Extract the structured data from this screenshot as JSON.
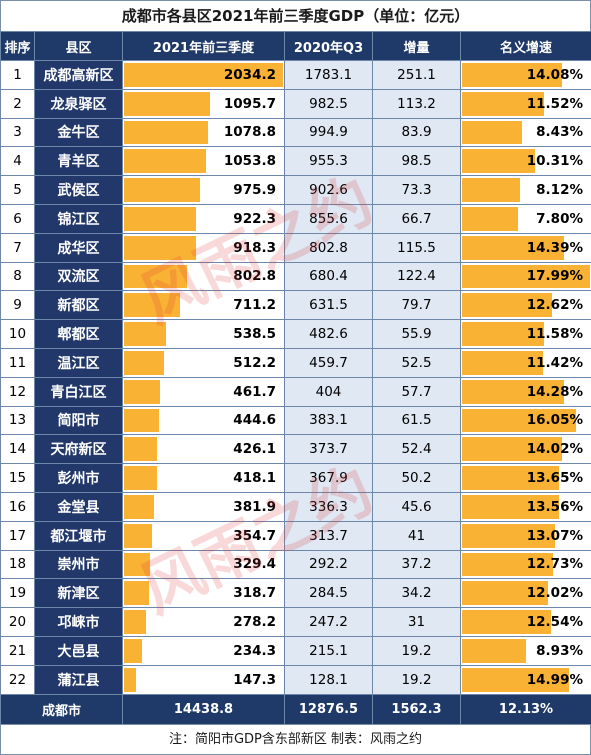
{
  "title": "成都市各县区2021年前三季度GDP（单位：亿元）",
  "headers": {
    "rank": "排序",
    "district": "县区",
    "current": "2021年前三季度",
    "previous": "2020年Q3",
    "increase": "增量",
    "growth": "名义增速"
  },
  "chart_data": {
    "type": "table",
    "title": "成都市各县区2021年前三季度GDP（单位：亿元）",
    "columns": [
      "排序",
      "县区",
      "2021年前三季度",
      "2020年Q3",
      "增量",
      "名义增速"
    ],
    "rows": [
      {
        "rank": "1",
        "district": "成都高新区",
        "current": 2034.2,
        "previous": "1783.1",
        "increase": "251.1",
        "growth": 14.08
      },
      {
        "rank": "2",
        "district": "龙泉驿区",
        "current": 1095.7,
        "previous": "982.5",
        "increase": "113.2",
        "growth": 11.52
      },
      {
        "rank": "3",
        "district": "金牛区",
        "current": 1078.8,
        "previous": "994.9",
        "increase": "83.9",
        "growth": 8.43
      },
      {
        "rank": "4",
        "district": "青羊区",
        "current": 1053.8,
        "previous": "955.3",
        "increase": "98.5",
        "growth": 10.31
      },
      {
        "rank": "5",
        "district": "武侯区",
        "current": 975.9,
        "previous": "902.6",
        "increase": "73.3",
        "growth": 8.12
      },
      {
        "rank": "6",
        "district": "锦江区",
        "current": 922.3,
        "previous": "855.6",
        "increase": "66.7",
        "growth": 7.8
      },
      {
        "rank": "7",
        "district": "成华区",
        "current": 918.3,
        "previous": "802.8",
        "increase": "115.5",
        "growth": 14.39
      },
      {
        "rank": "8",
        "district": "双流区",
        "current": 802.8,
        "previous": "680.4",
        "increase": "122.4",
        "growth": 17.99
      },
      {
        "rank": "9",
        "district": "新都区",
        "current": 711.2,
        "previous": "631.5",
        "increase": "79.7",
        "growth": 12.62
      },
      {
        "rank": "10",
        "district": "郫都区",
        "current": 538.5,
        "previous": "482.6",
        "increase": "55.9",
        "growth": 11.58
      },
      {
        "rank": "11",
        "district": "温江区",
        "current": 512.2,
        "previous": "459.7",
        "increase": "52.5",
        "growth": 11.42
      },
      {
        "rank": "12",
        "district": "青白江区",
        "current": 461.7,
        "previous": "404",
        "increase": "57.7",
        "growth": 14.28
      },
      {
        "rank": "13",
        "district": "简阳市",
        "current": 444.6,
        "previous": "383.1",
        "increase": "61.5",
        "growth": 16.05
      },
      {
        "rank": "14",
        "district": "天府新区",
        "current": 426.1,
        "previous": "373.7",
        "increase": "52.4",
        "growth": 14.02
      },
      {
        "rank": "15",
        "district": "彭州市",
        "current": 418.1,
        "previous": "367.9",
        "increase": "50.2",
        "growth": 13.65
      },
      {
        "rank": "16",
        "district": "金堂县",
        "current": 381.9,
        "previous": "336.3",
        "increase": "45.6",
        "growth": 13.56
      },
      {
        "rank": "17",
        "district": "都江堰市",
        "current": 354.7,
        "previous": "313.7",
        "increase": "41",
        "growth": 13.07
      },
      {
        "rank": "18",
        "district": "崇州市",
        "current": 329.4,
        "previous": "292.2",
        "increase": "37.2",
        "growth": 12.73
      },
      {
        "rank": "19",
        "district": "新津区",
        "current": 318.7,
        "previous": "284.5",
        "increase": "34.2",
        "growth": 12.02
      },
      {
        "rank": "20",
        "district": "邛崃市",
        "current": 278.2,
        "previous": "247.2",
        "increase": "31",
        "growth": 12.54
      },
      {
        "rank": "21",
        "district": "大邑县",
        "current": 234.3,
        "previous": "215.1",
        "increase": "19.2",
        "growth": 8.93
      },
      {
        "rank": "22",
        "district": "蒲江县",
        "current": 147.3,
        "previous": "128.1",
        "increase": "19.2",
        "growth": 14.99
      }
    ],
    "total": {
      "district": "成都市",
      "current": "14438.8",
      "previous": "12876.5",
      "increase": "1562.3",
      "growth": "12.13%"
    }
  },
  "footer_note": "注：简阳市GDP含东部新区   制表：风雨之约",
  "watermark_text": "风雨之约",
  "colors": {
    "header_bg": "#1f3a68",
    "name_bg": "#22386a",
    "bar": "#f9b233",
    "alt_col": "#dfe8f3"
  }
}
